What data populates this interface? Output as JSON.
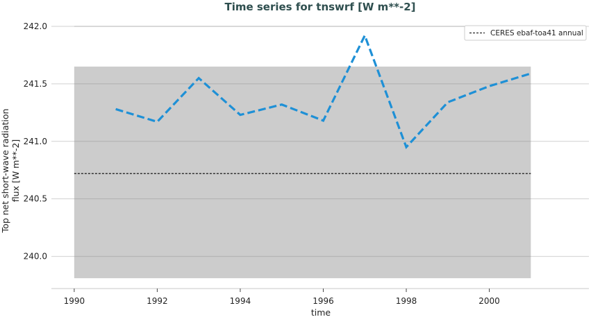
{
  "chart_data": {
    "type": "line",
    "title": "Time series for tnswrf [W m**-2]",
    "xlabel": "time",
    "ylabel_lines": [
      "Top net short-wave radiation",
      "flux [W m**-2]"
    ],
    "xlim": [
      1989.45,
      2002.4
    ],
    "ylim": [
      239.72,
      242.06
    ],
    "x_ticks": [
      1990,
      1992,
      1994,
      1996,
      1998,
      2000
    ],
    "y_ticks": [
      240.0,
      240.5,
      241.0,
      241.5,
      242.0
    ],
    "y_tick_labels": [
      "240.0",
      "240.5",
      "241.0",
      "241.5",
      "242.0"
    ],
    "grid": "horizontal",
    "legend_position": "top-right",
    "series": [
      {
        "style": "dashed-thick",
        "color": "#1e90d6",
        "x": [
          1991,
          1992,
          1993,
          1994,
          1995,
          1996,
          1997,
          1998,
          1999,
          2000,
          2001
        ],
        "values": [
          241.28,
          241.17,
          241.55,
          241.23,
          241.32,
          241.18,
          241.92,
          240.95,
          241.34,
          241.48,
          241.59
        ]
      },
      {
        "name": "CERES ebaf-toa41 annual",
        "style": "dashed-thin",
        "color": "#000000",
        "x": [
          1990,
          2001
        ],
        "values": [
          240.72,
          240.72
        ]
      }
    ],
    "shaded_band": {
      "color": "#cccccc",
      "x": [
        1990,
        2001
      ],
      "y": [
        239.81,
        241.65
      ]
    }
  }
}
